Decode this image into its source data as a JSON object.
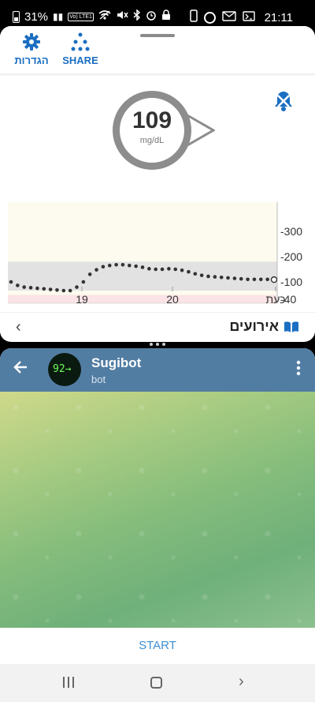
{
  "status_bar": {
    "battery": "31%",
    "volte": "Vo) LTE1",
    "time": "21:11"
  },
  "glucose_app": {
    "toolbar": {
      "settings_label": "הגדרות",
      "share_label": "SHARE"
    },
    "reading": {
      "value": "109",
      "unit": "mg/dL"
    },
    "chart_data": {
      "type": "scatter",
      "x_tick_labels": [
        "19",
        "20",
        "כעת"
      ],
      "y_tick_labels": [
        "300",
        "200",
        "100",
        "40"
      ],
      "target_range": [
        70,
        180
      ],
      "low_threshold": 55,
      "ylim": [
        40,
        400
      ],
      "series": [
        {
          "x": [
            0,
            1,
            2,
            3,
            4,
            5,
            6,
            7,
            8,
            9,
            10,
            11,
            12,
            13,
            14,
            15,
            16,
            17,
            18,
            19,
            20,
            21,
            22,
            23,
            24,
            25,
            26,
            27,
            28,
            29,
            30,
            31,
            32,
            33,
            34,
            35,
            36,
            37,
            38,
            39,
            40
          ],
          "values": [
            100,
            88,
            82,
            80,
            78,
            76,
            74,
            72,
            70,
            70,
            82,
            100,
            130,
            148,
            160,
            165,
            168,
            168,
            165,
            162,
            158,
            152,
            150,
            150,
            152,
            150,
            146,
            140,
            132,
            126,
            122,
            120,
            118,
            116,
            114,
            112,
            110,
            110,
            110,
            110,
            109
          ]
        }
      ]
    },
    "events": {
      "label": "אירועים"
    }
  },
  "telegram": {
    "bot_name": "Sugibot",
    "bot_subtitle": "bot",
    "avatar_text": "92→",
    "start_label": "START"
  }
}
